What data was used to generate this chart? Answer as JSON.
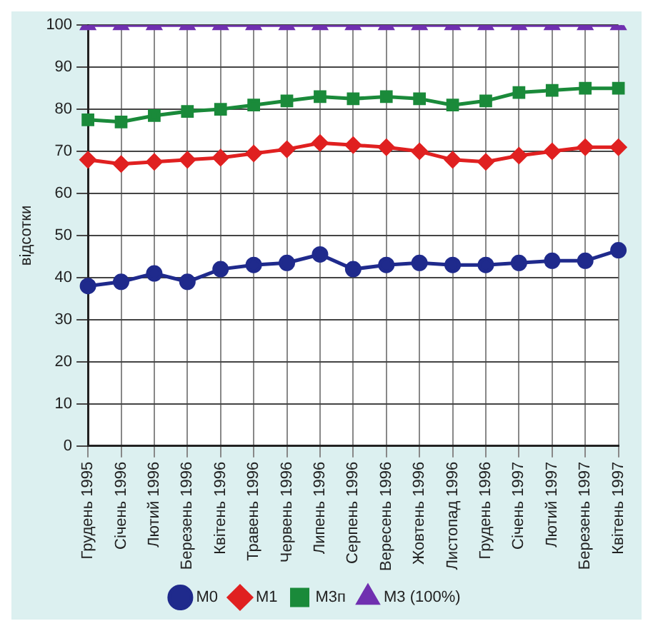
{
  "chart_data": {
    "type": "line",
    "ylabel": "відсотки",
    "categories": [
      "Грудень 1995",
      "Січень 1996",
      "Лютий 1996",
      "Березень 1996",
      "Квітень 1996",
      "Травень 1996",
      "Червень 1996",
      "Липень 1996",
      "Серпень 1996",
      "Вересень 1996",
      "Жовтень 1996",
      "Листопад 1996",
      "Грудень 1996",
      "Січень 1997",
      "Лютий 1997",
      "Березень 1997",
      "Квітень 1997"
    ],
    "series": [
      {
        "name": "M0",
        "color": "#1f2a8c",
        "marker": "circle",
        "values": [
          38,
          39,
          41,
          39,
          42,
          43,
          43.5,
          45.5,
          42,
          43,
          43.5,
          43,
          43,
          43.5,
          44,
          44,
          46.5
        ]
      },
      {
        "name": "M1",
        "color": "#e02020",
        "marker": "diamond",
        "values": [
          68,
          67,
          67.5,
          68,
          68.5,
          69.5,
          70.5,
          72,
          71.5,
          71,
          70,
          68,
          67.5,
          69,
          70,
          71,
          71
        ]
      },
      {
        "name": "M3п",
        "color": "#1a8a3a",
        "marker": "square",
        "values": [
          77.5,
          77,
          78.5,
          79.5,
          80,
          81,
          82,
          83,
          82.5,
          83,
          82.5,
          81,
          82,
          84,
          84.5,
          85,
          85
        ]
      },
      {
        "name": "M3 (100%)",
        "color": "#7030b0",
        "marker": "triangle",
        "values": [
          100,
          100,
          100,
          100,
          100,
          100,
          100,
          100,
          100,
          100,
          100,
          100,
          100,
          100,
          100,
          100,
          100
        ]
      }
    ],
    "ylim": [
      0,
      100
    ],
    "yticks": [
      0,
      10,
      20,
      30,
      40,
      50,
      60,
      70,
      80,
      90,
      100
    ],
    "grid": true,
    "legend": "bottom"
  }
}
